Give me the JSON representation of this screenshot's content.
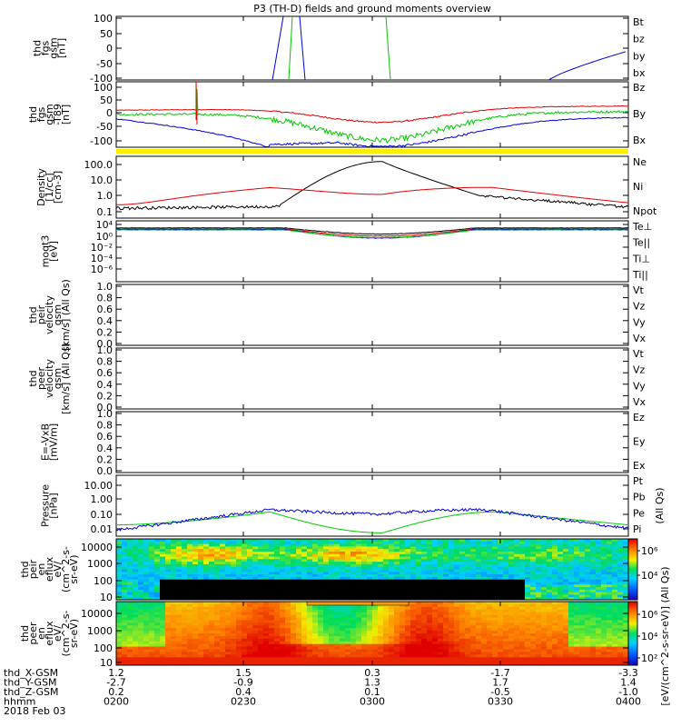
{
  "title": "P3 (TH-D) fields and ground moments overview",
  "panels": [
    {
      "key": "fgs",
      "ylabel_lines": [
        "thd",
        "fgs",
        "gsm",
        "[nT]"
      ],
      "type": "line",
      "ylim": [
        -100,
        100
      ],
      "log": false,
      "ticks": [
        "100",
        "50",
        "0",
        "-50",
        "-100"
      ],
      "legend": [
        {
          "text": "Bt",
          "color": "#000000"
        },
        {
          "text": "bz",
          "color": "#e00000"
        },
        {
          "text": "by",
          "color": "#00c800"
        },
        {
          "text": "bx",
          "color": "#0000e0"
        }
      ]
    },
    {
      "key": "fgs_dsl",
      "ylabel_lines": [
        "thd",
        "fgs",
        "gsm",
        "-T89",
        "[nT]"
      ],
      "type": "line",
      "ylim": [
        -120,
        110
      ],
      "log": false,
      "ticks": [
        "100",
        "50",
        "0",
        "-50",
        "-100"
      ],
      "legend": [
        {
          "text": "Bz",
          "color": "#e00000"
        },
        {
          "text": "By",
          "color": "#00c800"
        },
        {
          "text": "Bx",
          "color": "#0000e0"
        }
      ]
    },
    {
      "key": "density",
      "ylabel_lines": [
        "Density",
        "[1/cc]",
        "[cm-3]"
      ],
      "type": "line",
      "ylim": [
        0.05,
        200
      ],
      "log": true,
      "ticks": [
        "100.0",
        "10.0",
        "1.0",
        "0.1"
      ],
      "legend": [
        {
          "text": "Ne",
          "color": "#e00000"
        },
        {
          "text": "Ni",
          "color": "#000000"
        },
        {
          "text": "Npot",
          "color": "#0000e0"
        }
      ]
    },
    {
      "key": "temp",
      "ylabel_lines": [
        "moqt3",
        "[eV]"
      ],
      "type": "line",
      "ylim": [
        1e-07,
        100000.0
      ],
      "log": true,
      "ticks": [
        "10⁴",
        "10⁰",
        "10⁻²",
        "10⁻⁴",
        "10⁻⁶"
      ],
      "legend": [
        {
          "text": "Te⊥",
          "color": "#e00000"
        },
        {
          "text": "Te||",
          "color": "#000000"
        },
        {
          "text": "Ti⊥",
          "color": "#0000e0"
        },
        {
          "text": "Ti||",
          "color": "#00c800"
        }
      ]
    },
    {
      "key": "peir_vel",
      "ylabel_lines": [
        "thd",
        "peir",
        "velocity",
        "gsm",
        "[km/s] (All Qs)"
      ],
      "type": "empty",
      "ylim": [
        0,
        1
      ],
      "log": false,
      "ticks": [
        "1.0",
        "0.8",
        "0.6",
        "0.4",
        "0.2",
        "0.0"
      ],
      "legend": [
        {
          "text": "Vt",
          "color": "#000000"
        },
        {
          "text": "Vz",
          "color": "#e00000"
        },
        {
          "text": "Vy",
          "color": "#00c800"
        },
        {
          "text": "Vx",
          "color": "#0000e0"
        }
      ]
    },
    {
      "key": "peer_vel",
      "ylabel_lines": [
        "thd",
        "peer",
        "velocity",
        "gsm",
        "[km/s] (All Qs)"
      ],
      "type": "empty",
      "ylim": [
        0,
        1
      ],
      "log": false,
      "ticks": [
        "1.0",
        "0.8",
        "0.6",
        "0.4",
        "0.2",
        "0.0"
      ],
      "legend": [
        {
          "text": "Vt",
          "color": "#000000"
        },
        {
          "text": "Vz",
          "color": "#e00000"
        },
        {
          "text": "Vy",
          "color": "#00c800"
        },
        {
          "text": "Vx",
          "color": "#0000e0"
        }
      ]
    },
    {
      "key": "efield",
      "ylabel_lines": [
        "E=-VxB",
        "[mV/m]"
      ],
      "type": "empty",
      "ylim": [
        0,
        1
      ],
      "log": false,
      "ticks": [
        "1.0",
        "0.8",
        "0.6",
        "0.4",
        "0.2",
        "0.0"
      ],
      "legend": [
        {
          "text": "Ez",
          "color": "#e00000"
        },
        {
          "text": "Ey",
          "color": "#00c800"
        },
        {
          "text": "Ex",
          "color": "#0000e0"
        }
      ]
    },
    {
      "key": "pressure",
      "ylabel_lines": [
        "Pressure",
        "[nPa]"
      ],
      "type": "line",
      "ylim": [
        0.005,
        30
      ],
      "log": true,
      "ticks": [
        "10.00",
        "1.00",
        "0.10",
        "0.01"
      ],
      "legend": [
        {
          "text": "Pt",
          "color": "#000000"
        },
        {
          "text": "Pb",
          "color": "#e00000"
        },
        {
          "text": "Pe",
          "color": "#00c800"
        },
        {
          "text": "Pi",
          "color": "#0000e0"
        }
      ],
      "legend_note": "(All Qs)"
    },
    {
      "key": "peir_spec",
      "ylabel_lines": [
        "thd",
        "peir",
        "en",
        "eflux",
        "eV/",
        "(cm^2-s-",
        "sr-eV)"
      ],
      "type": "spectrogram",
      "ylim": [
        5,
        30000
      ],
      "log": true,
      "ticks": [
        "10000",
        "1000",
        "100",
        "10"
      ]
    },
    {
      "key": "peer_spec",
      "ylabel_lines": [
        "thd",
        "peer",
        "en",
        "eflux",
        "eV/",
        "(cm^2-s-",
        "sr-eV)"
      ],
      "type": "spectrogram",
      "ylim": [
        5,
        30000
      ],
      "log": true,
      "ticks": [
        "10000",
        "1000",
        "100",
        "10"
      ]
    }
  ],
  "colorbar": {
    "label": "[eV/(cm^2-s-sr-eV)] (All Qs)",
    "upper_ticks": [
      "10⁶",
      "10⁴"
    ],
    "lower_ticks": [
      "10⁶",
      "10⁴",
      "10²"
    ]
  },
  "x_axis": {
    "rows": [
      {
        "label": "thd_X-GSM",
        "values": [
          "1.2",
          "1.5",
          "0.3",
          "-1.7",
          "-3.3"
        ]
      },
      {
        "label": "thd_Y-GSM",
        "values": [
          "-2.7",
          "-0.9",
          "1.3",
          "1.7",
          "1.4"
        ]
      },
      {
        "label": "thd_Z-GSM",
        "values": [
          "0.2",
          "0.4",
          "0.1",
          "-0.5",
          "-1.0"
        ]
      },
      {
        "label": "hhmm",
        "values": [
          "0200",
          "0230",
          "0300",
          "0330",
          "0400"
        ]
      }
    ],
    "date": "2018 Feb 03"
  },
  "chart_data": {
    "type": "line",
    "title": "P3 (TH-D) fields and ground moments overview",
    "x": [
      "0200",
      "0230",
      "0300",
      "0330",
      "0400"
    ],
    "series": [
      {
        "name": "Ne",
        "panel": "Density",
        "x": [
          "0200",
          "0215",
          "0230",
          "0245",
          "0300",
          "0315",
          "0330",
          "0345",
          "0400"
        ],
        "values": [
          0.3,
          0.8,
          3,
          2.5,
          2,
          3,
          1.5,
          0.6,
          0.12
        ]
      },
      {
        "name": "Ni",
        "panel": "Density",
        "x": [
          "0200",
          "0215",
          "0230",
          "0245",
          "0300",
          "0315",
          "0330",
          "0345",
          "0400"
        ],
        "values": [
          0.15,
          0.2,
          0.3,
          30,
          100,
          1.5,
          0.8,
          0.3,
          0.1
        ]
      },
      {
        "name": "Pi",
        "panel": "Pressure",
        "x": [
          "0200",
          "0215",
          "0230",
          "0245",
          "0300",
          "0315",
          "0330",
          "0345",
          "0400"
        ],
        "values": [
          0.015,
          0.06,
          0.2,
          0.15,
          0.1,
          0.2,
          0.2,
          0.04,
          0.015
        ]
      },
      {
        "name": "Pe",
        "panel": "Pressure",
        "x": [
          "0200",
          "0215",
          "0230",
          "0245",
          "0300",
          "0315",
          "0330",
          "0345",
          "0400"
        ],
        "values": [
          0.025,
          0.05,
          0.15,
          0.05,
          0.008,
          0.05,
          0.15,
          0.04,
          0.02
        ]
      },
      {
        "name": "Bz",
        "panel": "fgs gsm-T89",
        "x": [
          "0200",
          "0215",
          "0230",
          "0245",
          "0300",
          "0315",
          "0330",
          "0345",
          "0400"
        ],
        "values": [
          10,
          10,
          0,
          -10,
          -50,
          -30,
          10,
          20,
          25
        ]
      },
      {
        "name": "By",
        "panel": "fgs gsm-T89",
        "x": [
          "0200",
          "0215",
          "0230",
          "0245",
          "0300",
          "0315",
          "0330",
          "0345",
          "0400"
        ],
        "values": [
          -5,
          -5,
          -20,
          -50,
          -100,
          -60,
          -10,
          0,
          5
        ]
      },
      {
        "name": "Bx",
        "panel": "fgs gsm-T89",
        "x": [
          "0200",
          "0215",
          "0230",
          "0245",
          "0300",
          "0315",
          "0330",
          "0345",
          "0400"
        ],
        "values": [
          -20,
          -50,
          -100,
          -120,
          -110,
          -60,
          -30,
          -20,
          -15
        ]
      }
    ]
  }
}
